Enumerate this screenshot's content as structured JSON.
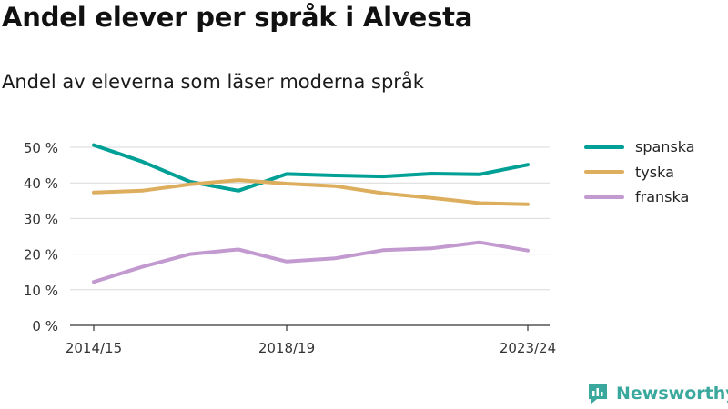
{
  "title": "Andel elever per språk i Alvesta",
  "subtitle": "Andel av eleverna som läser moderna språk",
  "brand": "Newsworthy",
  "chart_data": {
    "type": "line",
    "x_tick_labels": [
      "2014/15",
      "2018/19",
      "2023/24"
    ],
    "x_tick_indices": [
      0,
      4,
      9
    ],
    "y_ticks": [
      0,
      10,
      20,
      30,
      40,
      50
    ],
    "y_tick_labels": [
      "0 %",
      "10 %",
      "20 %",
      "30 %",
      "40 %",
      "50 %"
    ],
    "ylim": [
      0,
      50
    ],
    "grid": true,
    "legend_position": "right",
    "series": [
      {
        "name": "spanska",
        "color": "#00a096",
        "values": [
          50.6,
          46.0,
          40.3,
          37.8,
          42.5,
          42.1,
          41.8,
          42.6,
          42.4,
          45.1
        ]
      },
      {
        "name": "tyska",
        "color": "#dcae5e",
        "values": [
          37.3,
          37.8,
          39.6,
          40.8,
          39.8,
          39.1,
          37.1,
          35.8,
          34.3,
          34.0
        ]
      },
      {
        "name": "franska",
        "color": "#c29ad0",
        "values": [
          12.2,
          16.4,
          20.0,
          21.3,
          17.9,
          18.8,
          21.1,
          21.6,
          23.3,
          21.0
        ]
      }
    ]
  }
}
